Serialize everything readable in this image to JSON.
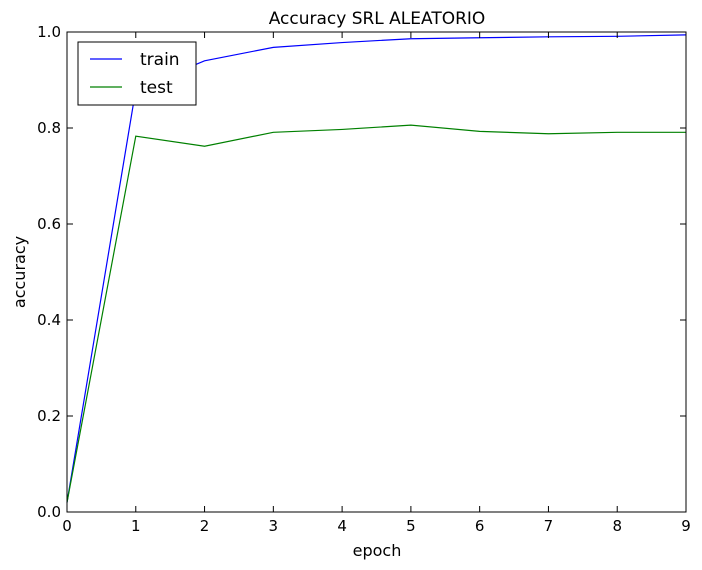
{
  "chart_data": {
    "type": "line",
    "title": "Accuracy SRL ALEATORIO",
    "xlabel": "epoch",
    "ylabel": "accuracy",
    "xlim": [
      0,
      9
    ],
    "ylim": [
      0.0,
      1.0
    ],
    "x_ticks": [
      "0",
      "1",
      "2",
      "3",
      "4",
      "5",
      "6",
      "7",
      "8",
      "9"
    ],
    "y_ticks": [
      "0.0",
      "0.2",
      "0.4",
      "0.6",
      "0.8",
      "1.0"
    ],
    "x": [
      0,
      1,
      2,
      3,
      4,
      5,
      6,
      7,
      8,
      9
    ],
    "series": [
      {
        "name": "train",
        "color": "#0000ff",
        "values": [
          0.02,
          0.88,
          0.94,
          0.968,
          0.978,
          0.986,
          0.988,
          0.99,
          0.991,
          0.994
        ]
      },
      {
        "name": "test",
        "color": "#008000",
        "values": [
          0.02,
          0.783,
          0.762,
          0.791,
          0.797,
          0.806,
          0.793,
          0.788,
          0.791,
          0.791
        ]
      }
    ],
    "legend_position": "top-left",
    "grid": false
  }
}
